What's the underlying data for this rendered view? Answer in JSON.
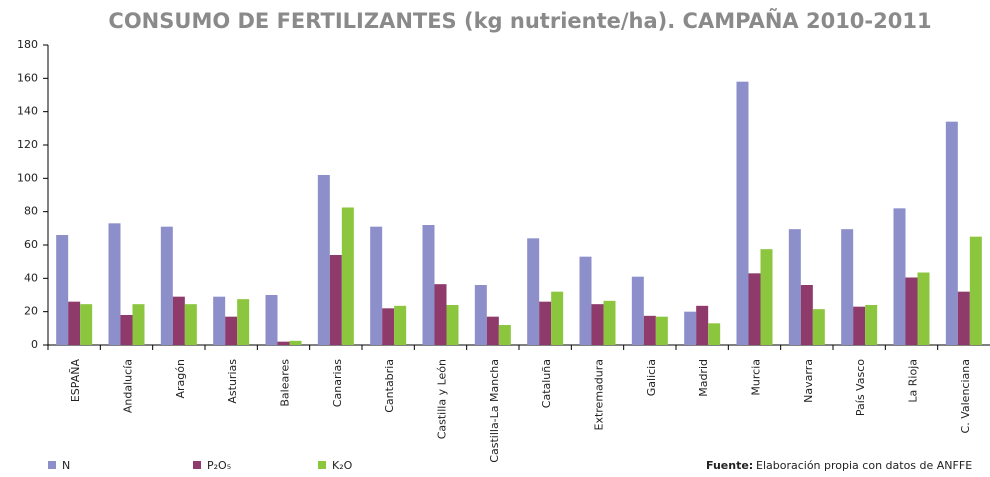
{
  "chart_data": {
    "type": "bar",
    "title": "CONSUMO DE FERTILIZANTES (kg nutriente/ha). CAMPAÑA 2010-2011",
    "categories": [
      "ESPAÑA",
      "Andalucía",
      "Aragón",
      "Asturias",
      "Baleares",
      "Canarias",
      "Cantabria",
      "Castilla y León",
      "Castilla-La Mancha",
      "Cataluña",
      "Extremadura",
      "Galicia",
      "Madrid",
      "Murcia",
      "Navarra",
      "País Vasco",
      "La Rioja",
      "C. Valenciana"
    ],
    "series": [
      {
        "name": "N",
        "color": "#8c8fc9",
        "values": [
          66,
          73,
          71,
          29,
          30,
          102,
          71,
          72,
          36,
          64,
          53,
          41,
          20,
          158,
          69.5,
          69.5,
          82,
          134
        ]
      },
      {
        "name": "P₂O₅",
        "color": "#8e3a6b",
        "values": [
          26,
          18,
          29,
          17,
          2,
          54,
          22,
          36.5,
          17,
          26,
          24.5,
          17.5,
          23.5,
          43,
          36,
          23,
          40.5,
          32
        ]
      },
      {
        "name": "K₂O",
        "color": "#8cc63f",
        "values": [
          24.5,
          24.5,
          24.5,
          27.5,
          2.5,
          82.5,
          23.5,
          24,
          12,
          32,
          26.5,
          17,
          13,
          57.5,
          21.5,
          24,
          43.5,
          65
        ]
      }
    ],
    "ylim": [
      0,
      180
    ],
    "yticks": [
      0,
      20,
      40,
      60,
      80,
      100,
      120,
      140,
      160,
      180
    ],
    "grid": false,
    "legend": "bottom",
    "source_label": "Fuente:",
    "source": "Elaboración propia  con datos de ANFFE"
  }
}
